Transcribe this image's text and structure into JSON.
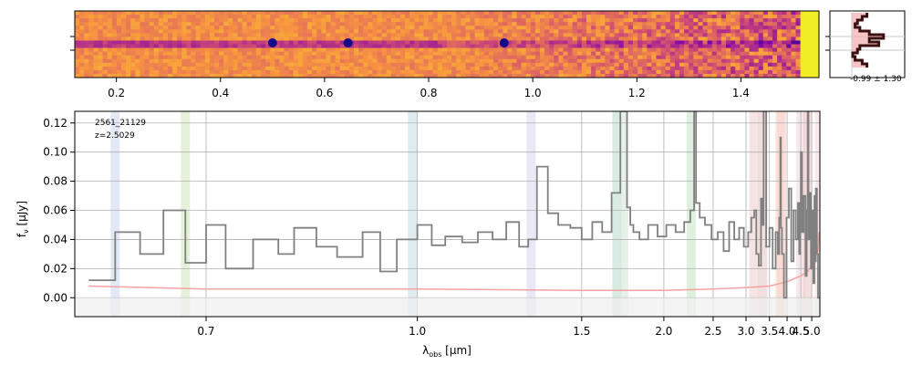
{
  "chart_data": [
    {
      "type": "heatmap",
      "panel": "2d-spectrum",
      "x_ticks": [
        "0.2",
        "0.4",
        "0.6",
        "0.8",
        "1.0",
        "1.2",
        "1.4"
      ],
      "x_tick_values": [
        0.2,
        0.4,
        0.6,
        0.8,
        1.0,
        1.2,
        1.4
      ],
      "xlim": [
        0.12,
        1.55
      ],
      "colormap": "plasma",
      "bright_spots_x": [
        0.5,
        0.645,
        0.945
      ]
    },
    {
      "type": "line",
      "panel": "profile",
      "annotation": "-0.99 ± 1.30",
      "profile_x": [
        0.55,
        0.45,
        0.35,
        0.3,
        0.4,
        0.6,
        0.9,
        0.6,
        0.8,
        0.4,
        0.35,
        0.25,
        0.3,
        0.45,
        0.55
      ],
      "fill_color": "#f4b6b6",
      "line_color": "#8b1a1a"
    },
    {
      "type": "line",
      "panel": "1d-spectrum",
      "title": "",
      "id_label": "2561_21129",
      "z_label": "z=2.5029",
      "xlabel": "λobs [µm]",
      "xlabel_main": "λ",
      "xlabel_sub": "obs",
      "xlabel_rest": " [µm]",
      "ylabel": "fν [µJy]",
      "ylabel_main": "f",
      "ylabel_sub": "ν",
      "ylabel_rest": " [µJy]",
      "ylim": [
        -0.013,
        0.128
      ],
      "xlim": [
        0.59,
        5.45
      ],
      "x_scale": "reciprocal",
      "x_ticks": [
        "0.7",
        "1.0",
        "1.5",
        "2.0",
        "2.5",
        "3.0",
        "3.5",
        "4.0",
        "4.5",
        "5.0"
      ],
      "x_tick_values": [
        0.7,
        1.0,
        1.5,
        2.0,
        2.5,
        3.0,
        3.5,
        4.0,
        4.5,
        5.0
      ],
      "y_ticks": [
        "0.00",
        "0.02",
        "0.04",
        "0.06",
        "0.08",
        "0.10",
        "0.12"
      ],
      "y_tick_values": [
        0.0,
        0.02,
        0.04,
        0.06,
        0.08,
        0.1,
        0.12
      ],
      "grid": true,
      "series": [
        {
          "color": "#808080",
          "x": [
            0.6,
            0.62,
            0.64,
            0.66,
            0.68,
            0.7,
            0.72,
            0.75,
            0.78,
            0.8,
            0.83,
            0.86,
            0.9,
            0.93,
            0.96,
            1.0,
            1.03,
            1.06,
            1.1,
            1.14,
            1.18,
            1.22,
            1.26,
            1.29,
            1.32,
            1.36,
            1.4,
            1.45,
            1.5,
            1.55,
            1.6,
            1.65,
            1.7,
            1.74,
            1.76,
            1.78,
            1.82,
            1.88,
            1.95,
            2.02,
            2.1,
            2.18,
            2.24,
            2.28,
            2.3,
            2.34,
            2.4,
            2.48,
            2.56,
            2.64,
            2.72,
            2.8,
            2.88,
            2.96,
            3.04,
            3.1,
            3.16,
            3.2,
            3.25,
            3.3,
            3.33,
            3.36,
            3.42,
            3.5,
            3.58,
            3.66,
            3.72,
            3.76,
            3.79,
            3.81,
            3.84,
            3.9,
            3.98,
            4.06,
            4.14,
            4.22,
            4.3,
            4.38,
            4.44,
            4.48,
            4.5,
            4.55,
            4.62,
            4.7,
            4.76,
            4.8,
            4.84,
            4.9,
            4.96,
            5.02,
            5.08,
            5.14,
            5.18,
            5.22,
            5.28,
            5.34,
            5.4
          ],
          "values": [
            0.012,
            0.045,
            0.03,
            0.06,
            0.024,
            0.05,
            0.02,
            0.04,
            0.03,
            0.048,
            0.035,
            0.028,
            0.045,
            0.018,
            0.04,
            0.05,
            0.036,
            0.042,
            0.038,
            0.045,
            0.04,
            0.052,
            0.035,
            0.04,
            0.09,
            0.058,
            0.05,
            0.048,
            0.04,
            0.052,
            0.045,
            0.072,
            0.128,
            0.062,
            0.05,
            0.045,
            0.04,
            0.05,
            0.042,
            0.05,
            0.045,
            0.052,
            0.06,
            0.128,
            0.065,
            0.055,
            0.05,
            0.04,
            0.045,
            0.032,
            0.052,
            0.04,
            0.048,
            0.035,
            0.045,
            0.055,
            0.06,
            0.03,
            0.022,
            0.068,
            0.05,
            0.128,
            0.035,
            0.048,
            0.02,
            0.045,
            0.03,
            0.055,
            0.11,
            0.048,
            0.03,
            0.0,
            0.055,
            0.075,
            0.025,
            0.06,
            0.04,
            0.065,
            0.03,
            0.06,
            0.1,
            0.045,
            0.07,
            0.015,
            0.06,
            0.128,
            0.04,
            0.072,
            0.02,
            0.06,
            0.01,
            0.07,
            0.025,
            0.075,
            0.03,
            0.0,
            0.0
          ]
        },
        {
          "color": "#f4a3a3",
          "x": [
            0.6,
            0.7,
            1.0,
            1.5,
            2.0,
            2.5,
            3.0,
            3.5,
            4.0,
            4.5,
            4.8,
            5.0,
            5.2,
            5.35,
            5.4
          ],
          "values": [
            0.008,
            0.006,
            0.006,
            0.005,
            0.005,
            0.006,
            0.007,
            0.008,
            0.011,
            0.015,
            0.018,
            0.022,
            0.028,
            0.032,
            0.045
          ]
        }
      ],
      "line_markers": [
        0.62,
        0.68,
        0.99,
        1.3,
        1.68,
        1.72,
        2.25,
        3.15,
        3.34,
        3.78,
        3.83,
        4.5,
        4.8,
        5.42
      ],
      "line_marker_colors": [
        "#d0d8f0",
        "#d5e8c0",
        "#c8e0e8",
        "#d8d8f0",
        "#c0e0d0",
        "#d8e8d8",
        "#c8e8c8",
        "#f0d0d0",
        "#e8c8c8",
        "#f8d8c0",
        "#f8d0d0",
        "#f0d8e0",
        "#f0c8c8",
        "#f8d8d8"
      ]
    }
  ]
}
